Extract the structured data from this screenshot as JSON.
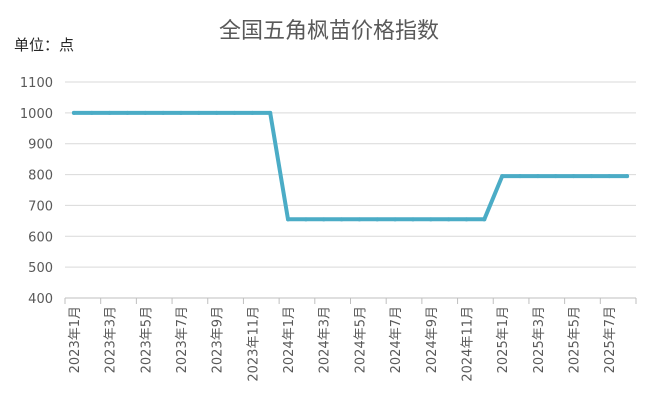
{
  "chart_data": {
    "type": "line",
    "title": "全国五角枫苗价格指数",
    "unit_label": "单位：点",
    "xlabel": "",
    "ylabel": "",
    "ylim": [
      400,
      1100
    ],
    "yticks": [
      400,
      500,
      600,
      700,
      800,
      900,
      1000,
      1100
    ],
    "grid": true,
    "legend": "none",
    "line_color": "#4bacc6",
    "x_tick_labels": [
      "2023年1月",
      "2023年3月",
      "2023年5月",
      "2023年7月",
      "2023年9月",
      "2023年11月",
      "2024年1月",
      "2024年3月",
      "2024年5月",
      "2024年7月",
      "2024年9月",
      "2024年11月",
      "2025年1月",
      "2025年3月",
      "2025年5月",
      "2025年7月"
    ],
    "x": [
      "2023年1月",
      "2023年2月",
      "2023年3月",
      "2023年4月",
      "2023年5月",
      "2023年6月",
      "2023年7月",
      "2023年8月",
      "2023年9月",
      "2023年10月",
      "2023年11月",
      "2023年12月",
      "2024年1月",
      "2024年2月",
      "2024年3月",
      "2024年4月",
      "2024年5月",
      "2024年6月",
      "2024年7月",
      "2024年8月",
      "2024年9月",
      "2024年10月",
      "2024年11月",
      "2024年12月",
      "2025年1月",
      "2025年2月",
      "2025年3月",
      "2025年4月",
      "2025年5月",
      "2025年6月",
      "2025年7月",
      "2025年8月"
    ],
    "series": [
      {
        "values": [
          1000,
          1000,
          1000,
          1000,
          1000,
          1000,
          1000,
          1000,
          1000,
          1000,
          1000,
          1000,
          655,
          655,
          655,
          655,
          655,
          655,
          655,
          655,
          655,
          655,
          655,
          655,
          795,
          795,
          795,
          795,
          795,
          795,
          795,
          795
        ]
      }
    ]
  }
}
